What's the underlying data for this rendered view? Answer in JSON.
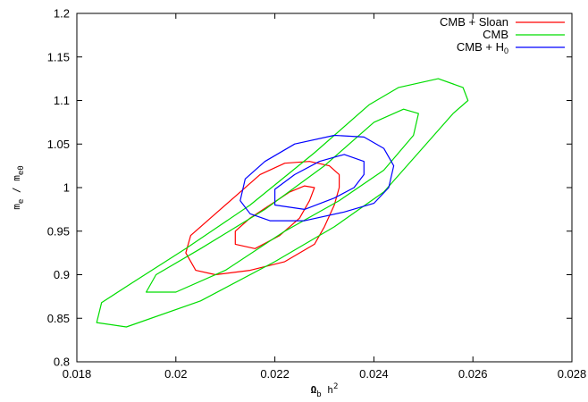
{
  "chart_data": {
    "type": "line",
    "title": "",
    "xlabel": "Ω_b h^2",
    "ylabel": "m_e / m_e0",
    "xlim": [
      0.018,
      0.028
    ],
    "ylim": [
      0.8,
      1.2
    ],
    "xticks": [
      "0.018",
      "0.02",
      "0.022",
      "0.024",
      "0.026",
      "0.028"
    ],
    "yticks": [
      "0.8",
      "0.85",
      "0.9",
      "0.95",
      "1",
      "1.05",
      "1.1",
      "1.15",
      "1.2"
    ],
    "grid": false,
    "legend_position": "top-right",
    "series": [
      {
        "name": "CMB + Sloan",
        "color": "#ff0000",
        "contours": [
          [
            [
              0.0204,
              0.905
            ],
            [
              0.0208,
              0.9
            ],
            [
              0.0215,
              0.905
            ],
            [
              0.0222,
              0.915
            ],
            [
              0.0228,
              0.935
            ],
            [
              0.023,
              0.955
            ],
            [
              0.0232,
              0.98
            ],
            [
              0.0233,
              1.0
            ],
            [
              0.0233,
              1.015
            ],
            [
              0.0231,
              1.025
            ],
            [
              0.0227,
              1.03
            ],
            [
              0.0222,
              1.028
            ],
            [
              0.0217,
              1.015
            ],
            [
              0.0212,
              0.99
            ],
            [
              0.0207,
              0.965
            ],
            [
              0.0203,
              0.945
            ],
            [
              0.0202,
              0.925
            ],
            [
              0.0204,
              0.905
            ]
          ],
          [
            [
              0.0212,
              0.935
            ],
            [
              0.0216,
              0.93
            ],
            [
              0.0221,
              0.945
            ],
            [
              0.0225,
              0.965
            ],
            [
              0.0227,
              0.985
            ],
            [
              0.0228,
              1.0
            ],
            [
              0.0226,
              1.002
            ],
            [
              0.0223,
              0.995
            ],
            [
              0.0219,
              0.98
            ],
            [
              0.0215,
              0.965
            ],
            [
              0.0212,
              0.95
            ],
            [
              0.0212,
              0.935
            ]
          ]
        ]
      },
      {
        "name": "CMB",
        "color": "#00dd00",
        "contours": [
          [
            [
              0.0184,
              0.845
            ],
            [
              0.0185,
              0.868
            ],
            [
              0.0191,
              0.89
            ],
            [
              0.0202,
              0.93
            ],
            [
              0.0215,
              0.98
            ],
            [
              0.0228,
              1.04
            ],
            [
              0.0239,
              1.095
            ],
            [
              0.0245,
              1.115
            ],
            [
              0.0253,
              1.125
            ],
            [
              0.0258,
              1.115
            ],
            [
              0.0259,
              1.1
            ],
            [
              0.0256,
              1.085
            ],
            [
              0.0249,
              1.04
            ],
            [
              0.0242,
              0.995
            ],
            [
              0.0232,
              0.955
            ],
            [
              0.022,
              0.915
            ],
            [
              0.0205,
              0.87
            ],
            [
              0.019,
              0.84
            ],
            [
              0.0184,
              0.845
            ]
          ],
          [
            [
              0.0194,
              0.88
            ],
            [
              0.0196,
              0.9
            ],
            [
              0.0205,
              0.93
            ],
            [
              0.0218,
              0.975
            ],
            [
              0.023,
              1.025
            ],
            [
              0.024,
              1.075
            ],
            [
              0.0246,
              1.09
            ],
            [
              0.0249,
              1.085
            ],
            [
              0.0248,
              1.06
            ],
            [
              0.0242,
              1.02
            ],
            [
              0.0233,
              0.985
            ],
            [
              0.0222,
              0.95
            ],
            [
              0.021,
              0.905
            ],
            [
              0.02,
              0.88
            ],
            [
              0.0194,
              0.88
            ]
          ]
        ]
      },
      {
        "name": "CMB + H_0",
        "color": "#0000ff",
        "contours": [
          [
            [
              0.0213,
              0.985
            ],
            [
              0.0214,
              1.01
            ],
            [
              0.0218,
              1.03
            ],
            [
              0.0224,
              1.05
            ],
            [
              0.0232,
              1.06
            ],
            [
              0.0238,
              1.058
            ],
            [
              0.0242,
              1.045
            ],
            [
              0.0244,
              1.025
            ],
            [
              0.0243,
              1.0
            ],
            [
              0.024,
              0.982
            ],
            [
              0.0234,
              0.972
            ],
            [
              0.0226,
              0.962
            ],
            [
              0.0219,
              0.962
            ],
            [
              0.0215,
              0.97
            ],
            [
              0.0213,
              0.985
            ]
          ],
          [
            [
              0.022,
              0.98
            ],
            [
              0.022,
              0.998
            ],
            [
              0.0224,
              1.015
            ],
            [
              0.0229,
              1.03
            ],
            [
              0.0234,
              1.038
            ],
            [
              0.0238,
              1.03
            ],
            [
              0.0238,
              1.015
            ],
            [
              0.0236,
              1.0
            ],
            [
              0.0232,
              0.988
            ],
            [
              0.0226,
              0.975
            ],
            [
              0.022,
              0.98
            ]
          ]
        ]
      }
    ]
  }
}
